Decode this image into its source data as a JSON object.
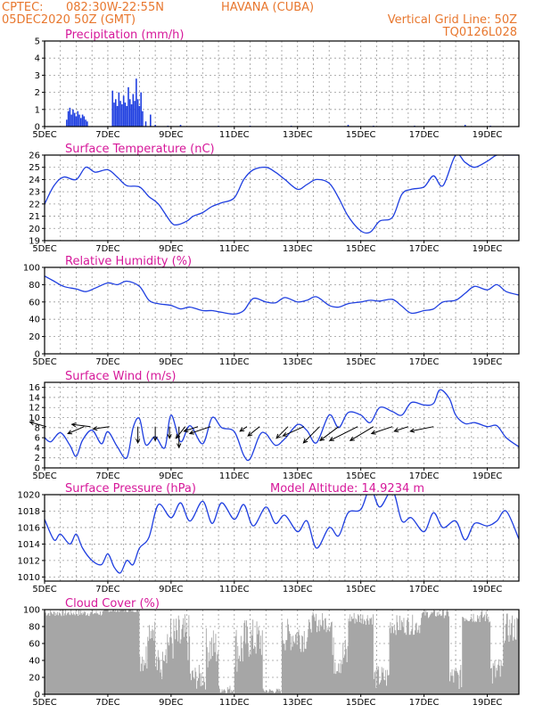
{
  "header": {
    "source": "CPTEC:",
    "coords": "082:30W-22:55N",
    "location": "HAVANA (CUBA)",
    "init": "05DEC2020 50Z (GMT)",
    "grid_note": "Vertical Grid Line: 50Z",
    "model_code": "TQ0126L028",
    "model_altitude": "Model Altitude: 14.9234 m"
  },
  "colors": {
    "series": "#1f3fe0",
    "cloud": "#a6a6a6",
    "header": "#e8772e",
    "title": "#d6189a",
    "arrow": "#000000"
  },
  "x_ticks": [
    "5DEC",
    "7DEC",
    "9DEC",
    "11DEC",
    "13DEC",
    "15DEC",
    "17DEC",
    "19DEC"
  ],
  "chart_data": [
    {
      "type": "bar",
      "title": "Precipitation (mm/h)",
      "xlim": [
        0,
        15
      ],
      "ylim": [
        0,
        5
      ],
      "yticks": [
        "0",
        "1",
        "2",
        "3",
        "4",
        "5"
      ],
      "x_units": "days since 5DEC (tick labels show dates)",
      "x": [
        0.7,
        0.75,
        0.8,
        0.85,
        0.9,
        0.95,
        1.0,
        1.05,
        1.1,
        1.15,
        1.2,
        1.25,
        1.3,
        1.35,
        2.15,
        2.2,
        2.25,
        2.3,
        2.35,
        2.4,
        2.45,
        2.5,
        2.55,
        2.6,
        2.65,
        2.7,
        2.75,
        2.8,
        2.85,
        2.9,
        2.95,
        3.0,
        3.05,
        3.1,
        3.2,
        3.35,
        3.5,
        3.9,
        4.3,
        5.5,
        6.5,
        7.8,
        9.6,
        10.4,
        11.7,
        13.3,
        14.1
      ],
      "values": [
        0.4,
        0.9,
        1.1,
        0.7,
        1.0,
        0.8,
        0.6,
        0.9,
        0.7,
        0.5,
        0.7,
        0.6,
        0.4,
        0.3,
        2.1,
        1.4,
        1.6,
        1.2,
        2.0,
        1.5,
        1.3,
        1.8,
        1.4,
        1.2,
        2.3,
        1.6,
        1.3,
        1.9,
        1.5,
        2.8,
        1.6,
        1.2,
        2.0,
        0.9,
        0.3,
        0.7,
        0.1,
        0.05,
        0.1,
        0.05,
        0.05,
        0.05,
        0.1,
        0.05,
        0.05,
        0.1,
        0.05
      ]
    },
    {
      "type": "line",
      "title": "Surface Temperature (nC)",
      "xlim": [
        0,
        15
      ],
      "ylim": [
        19,
        26
      ],
      "yticks": [
        "19",
        "20",
        "21",
        "22",
        "23",
        "24",
        "25",
        "26"
      ],
      "x": [
        0,
        0.3,
        0.6,
        1.0,
        1.3,
        1.6,
        2.0,
        2.3,
        2.6,
        3.0,
        3.3,
        3.6,
        4.0,
        4.2,
        4.5,
        4.7,
        5.0,
        5.3,
        5.6,
        6.0,
        6.3,
        6.6,
        7.0,
        7.3,
        7.6,
        8.0,
        8.3,
        8.6,
        9.0,
        9.3,
        9.6,
        10.0,
        10.3,
        10.6,
        11.0,
        11.3,
        11.6,
        12.0,
        12.3,
        12.6,
        13.0,
        13.3,
        13.6,
        14.0,
        14.3,
        14.6,
        15.0
      ],
      "values": [
        22.0,
        23.5,
        24.2,
        24.0,
        25.0,
        24.6,
        24.8,
        24.2,
        23.5,
        23.4,
        22.6,
        22.0,
        20.5,
        20.3,
        20.6,
        21.0,
        21.3,
        21.8,
        22.1,
        22.5,
        24.0,
        24.8,
        25.0,
        24.6,
        24.0,
        23.2,
        23.6,
        24.0,
        23.7,
        22.5,
        21.0,
        19.8,
        19.7,
        20.6,
        20.9,
        22.8,
        23.2,
        23.4,
        24.3,
        23.5,
        26.0,
        25.4,
        25.0,
        25.5,
        26.0,
        26.0,
        26.0
      ]
    },
    {
      "type": "line",
      "title": "Relative Humidity (%)",
      "xlim": [
        0,
        15
      ],
      "ylim": [
        0,
        100
      ],
      "yticks": [
        "0",
        "20",
        "40",
        "60",
        "80",
        "100"
      ],
      "x": [
        0,
        0.3,
        0.6,
        1.0,
        1.3,
        1.6,
        2.0,
        2.3,
        2.6,
        3.0,
        3.3,
        3.6,
        4.0,
        4.3,
        4.6,
        5.0,
        5.3,
        5.6,
        6.0,
        6.3,
        6.6,
        7.0,
        7.3,
        7.6,
        8.0,
        8.3,
        8.6,
        9.0,
        9.3,
        9.6,
        10.0,
        10.3,
        10.6,
        11.0,
        11.3,
        11.6,
        12.0,
        12.3,
        12.6,
        13.0,
        13.3,
        13.6,
        14.0,
        14.3,
        14.6,
        15.0
      ],
      "values": [
        90,
        84,
        78,
        75,
        72,
        76,
        82,
        80,
        84,
        78,
        62,
        58,
        56,
        52,
        54,
        50,
        50,
        48,
        46,
        50,
        64,
        60,
        59,
        65,
        60,
        62,
        66,
        56,
        54,
        58,
        60,
        62,
        61,
        63,
        55,
        47,
        50,
        52,
        60,
        62,
        70,
        78,
        74,
        80,
        72,
        68
      ]
    },
    {
      "type": "line",
      "title": "Surface Wind (m/s)",
      "xlim": [
        0,
        15
      ],
      "ylim": [
        0,
        17
      ],
      "yticks": [
        "0",
        "2",
        "4",
        "6",
        "8",
        "10",
        "12",
        "14",
        "16"
      ],
      "x": [
        0,
        0.2,
        0.5,
        0.8,
        1.0,
        1.2,
        1.5,
        1.8,
        2.0,
        2.3,
        2.6,
        2.8,
        3.0,
        3.2,
        3.5,
        3.8,
        4.0,
        4.3,
        4.6,
        5.0,
        5.3,
        5.6,
        6.0,
        6.3,
        6.5,
        6.8,
        7.0,
        7.3,
        7.6,
        8.0,
        8.3,
        8.6,
        9.0,
        9.3,
        9.6,
        10.0,
        10.3,
        10.6,
        11.0,
        11.3,
        11.6,
        12.0,
        12.3,
        12.5,
        12.8,
        13.0,
        13.3,
        13.6,
        14.0,
        14.3,
        14.6,
        15.0
      ],
      "values": [
        6,
        5.2,
        7,
        4.5,
        2.3,
        5.5,
        7.5,
        4.8,
        7.2,
        4.2,
        2,
        8,
        9.8,
        4.6,
        6.2,
        4,
        10.5,
        5.2,
        8.4,
        4.8,
        10,
        8,
        7.2,
        2.5,
        1.8,
        6.5,
        6.8,
        4.5,
        5.8,
        8.6,
        7.4,
        5,
        10.5,
        8,
        11,
        10.5,
        9,
        12,
        11.2,
        10.5,
        13,
        12.5,
        12.8,
        15.5,
        13.8,
        10.5,
        8.8,
        9,
        8.2,
        8.4,
        6,
        4.2
      ]
    },
    {
      "type": "line",
      "title": "Surface Pressure (hPa)",
      "xlim": [
        0,
        15
      ],
      "ylim": [
        1009.5,
        1020
      ],
      "yticks": [
        "1010",
        "1012",
        "1014",
        "1016",
        "1018",
        "1020"
      ],
      "x": [
        0,
        0.3,
        0.5,
        0.8,
        1.0,
        1.2,
        1.5,
        1.8,
        2.0,
        2.2,
        2.4,
        2.6,
        2.8,
        3.0,
        3.3,
        3.6,
        4.0,
        4.3,
        4.6,
        5.0,
        5.3,
        5.6,
        6.0,
        6.3,
        6.6,
        7.0,
        7.3,
        7.6,
        8.0,
        8.3,
        8.6,
        9.0,
        9.3,
        9.6,
        10.0,
        10.3,
        10.6,
        11.0,
        11.3,
        11.6,
        12.0,
        12.3,
        12.6,
        13.0,
        13.3,
        13.6,
        14.0,
        14.3,
        14.6,
        15.0
      ],
      "values": [
        1017,
        1014.5,
        1015.2,
        1014,
        1015.2,
        1013.5,
        1012,
        1011.5,
        1012.8,
        1011.2,
        1010.5,
        1012,
        1011.5,
        1013.5,
        1014.8,
        1018.8,
        1017.2,
        1019,
        1016.8,
        1019.2,
        1016.5,
        1019,
        1017,
        1018.8,
        1016.2,
        1018.5,
        1016.5,
        1017.5,
        1015.5,
        1016.8,
        1013.5,
        1016,
        1015,
        1017.8,
        1018.2,
        1020.8,
        1018.5,
        1020.5,
        1016.8,
        1017.2,
        1015.5,
        1017.8,
        1016,
        1016.8,
        1014.5,
        1016.5,
        1016.2,
        1016.8,
        1018,
        1014.6
      ]
    }
  ],
  "wind_panel": {
    "x_units": "days since 5DEC",
    "arrows": [
      {
        "x": 0.05,
        "u": -7,
        "v": 2
      },
      {
        "x": 1.25,
        "u": -7,
        "v": -3
      },
      {
        "x": 1.45,
        "u": -8,
        "v": 1
      },
      {
        "x": 2.05,
        "u": -7,
        "v": -1
      },
      {
        "x": 2.95,
        "u": 0,
        "v": -7
      },
      {
        "x": 3.5,
        "u": 0,
        "v": -6
      },
      {
        "x": 3.95,
        "u": 0,
        "v": -5
      },
      {
        "x": 4.25,
        "u": 0,
        "v": -9
      },
      {
        "x": 4.45,
        "u": -4,
        "v": -5
      },
      {
        "x": 4.85,
        "u": -6,
        "v": -2
      },
      {
        "x": 5.25,
        "u": -9,
        "v": -3
      },
      {
        "x": 6.4,
        "u": -3,
        "v": -2
      },
      {
        "x": 6.8,
        "u": -5,
        "v": -4
      },
      {
        "x": 7.7,
        "u": -5,
        "v": -5
      },
      {
        "x": 8.2,
        "u": -9,
        "v": -4
      },
      {
        "x": 8.7,
        "u": -7,
        "v": -7
      },
      {
        "x": 9.3,
        "u": -8,
        "v": -6
      },
      {
        "x": 9.9,
        "u": -12,
        "v": -6
      },
      {
        "x": 10.4,
        "u": -10,
        "v": -6
      },
      {
        "x": 11.0,
        "u": -9,
        "v": -3
      },
      {
        "x": 11.5,
        "u": -6,
        "v": -2
      },
      {
        "x": 12.3,
        "u": -10,
        "v": -2
      }
    ]
  },
  "cloud_panel": {
    "title": "Cloud Cover (%)",
    "ylim": [
      0,
      100
    ],
    "yticks": [
      "0",
      "20",
      "40",
      "60",
      "80",
      "100"
    ],
    "x_units": "days since 5DEC",
    "segments": [
      {
        "x0": 0.0,
        "x1": 1.9,
        "v": 96,
        "amp": 4
      },
      {
        "x0": 1.9,
        "x1": 3.0,
        "v": 99,
        "amp": 2
      },
      {
        "x0": 3.0,
        "x1": 3.25,
        "v": 45,
        "amp": 20
      },
      {
        "x0": 3.25,
        "x1": 3.5,
        "v": 78,
        "amp": 15
      },
      {
        "x0": 3.5,
        "x1": 3.75,
        "v": 35,
        "amp": 20
      },
      {
        "x0": 3.75,
        "x1": 4.6,
        "v": 65,
        "amp": 30
      },
      {
        "x0": 4.6,
        "x1": 5.1,
        "v": 20,
        "amp": 15
      },
      {
        "x0": 5.1,
        "x1": 5.5,
        "v": 55,
        "amp": 25
      },
      {
        "x0": 5.5,
        "x1": 6.0,
        "v": 6,
        "amp": 5
      },
      {
        "x0": 6.0,
        "x1": 6.3,
        "v": 55,
        "amp": 30
      },
      {
        "x0": 6.3,
        "x1": 6.9,
        "v": 65,
        "amp": 25
      },
      {
        "x0": 6.9,
        "x1": 7.5,
        "v": 4,
        "amp": 3
      },
      {
        "x0": 7.5,
        "x1": 8.4,
        "v": 70,
        "amp": 20
      },
      {
        "x0": 8.4,
        "x1": 9.1,
        "v": 85,
        "amp": 12
      },
      {
        "x0": 9.1,
        "x1": 9.6,
        "v": 45,
        "amp": 25
      },
      {
        "x0": 9.6,
        "x1": 10.4,
        "v": 90,
        "amp": 8
      },
      {
        "x0": 10.4,
        "x1": 10.9,
        "v": 20,
        "amp": 15
      },
      {
        "x0": 10.9,
        "x1": 11.9,
        "v": 82,
        "amp": 12
      },
      {
        "x0": 11.9,
        "x1": 12.8,
        "v": 95,
        "amp": 5
      },
      {
        "x0": 12.8,
        "x1": 13.2,
        "v": 20,
        "amp": 15
      },
      {
        "x0": 13.2,
        "x1": 14.1,
        "v": 92,
        "amp": 8
      },
      {
        "x0": 14.1,
        "x1": 14.5,
        "v": 25,
        "amp": 20
      },
      {
        "x0": 14.5,
        "x1": 15.0,
        "v": 78,
        "amp": 18
      }
    ]
  }
}
